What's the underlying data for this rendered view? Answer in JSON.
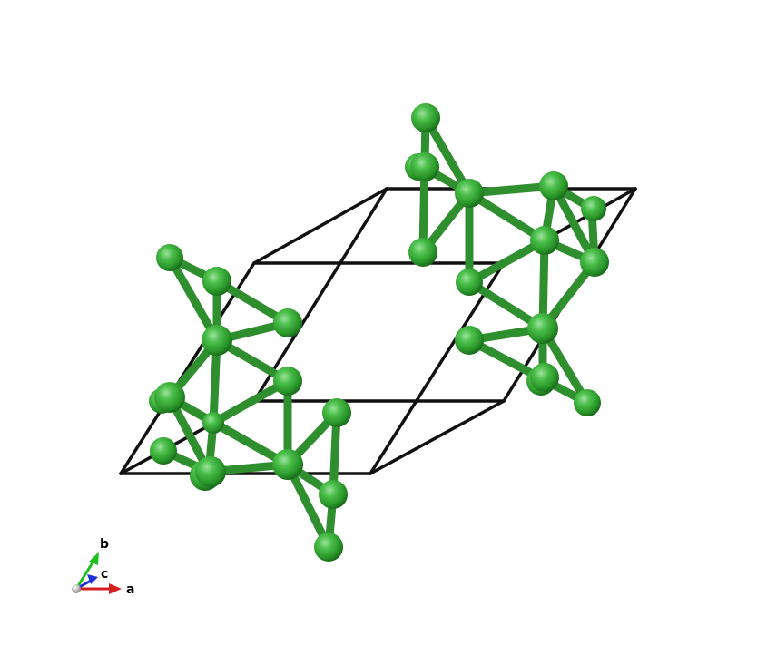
{
  "viewer": {
    "structure": "crystal-structure-unit-cell",
    "atom_color": "#3aa63a",
    "bond_color": "#2f8f2f",
    "cell_edge_color": "#111111"
  },
  "axes": {
    "a": {
      "label": "a",
      "color": "#d42020"
    },
    "b": {
      "label": "b",
      "color": "#1fbf1f"
    },
    "c": {
      "label": "c",
      "color": "#1f2fd4"
    }
  }
}
